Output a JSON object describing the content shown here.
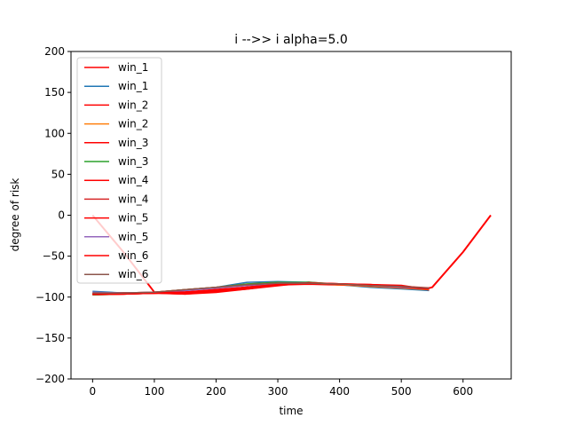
{
  "chart_data": {
    "type": "line",
    "title": "i -->> i  alpha=5.0",
    "xlabel": "time",
    "ylabel": "degree of risk",
    "xlim": [
      -35,
      678
    ],
    "ylim": [
      -200,
      200
    ],
    "xticks": [
      0,
      100,
      200,
      300,
      400,
      500,
      600
    ],
    "yticks": [
      -200,
      -150,
      -100,
      -50,
      0,
      50,
      100,
      150,
      200
    ],
    "grid": false,
    "legend_position": "top-left",
    "series": [
      {
        "name": "win_1",
        "color": "#ff0000",
        "x": [
          0,
          50,
          100,
          110,
          150,
          200,
          250,
          300,
          350,
          400,
          450,
          500,
          540,
          550,
          600,
          645
        ],
        "y": [
          0,
          -45,
          -94,
          -95,
          -96,
          -94,
          -90,
          -86,
          -82,
          -85,
          -86,
          -87,
          -90,
          -88,
          -45,
          0
        ]
      },
      {
        "name": "win_1",
        "color": "#1f77b4",
        "x": [
          0,
          50,
          100,
          150,
          200,
          250,
          300,
          350,
          400,
          450,
          500,
          545
        ],
        "y": [
          -93,
          -95,
          -95,
          -92,
          -88,
          -82,
          -81,
          -82,
          -85,
          -88,
          -90,
          -92
        ]
      },
      {
        "name": "win_2",
        "color": "#ff0000",
        "x": [
          0,
          50,
          100,
          150,
          200,
          250,
          300,
          350,
          400,
          450,
          500,
          545
        ],
        "y": [
          -97,
          -96,
          -95,
          -96,
          -93,
          -90,
          -85,
          -84,
          -85,
          -85,
          -86,
          -91
        ]
      },
      {
        "name": "win_2",
        "color": "#ff7f0e",
        "x": [
          0,
          50,
          100,
          150,
          200,
          250,
          300,
          350,
          400,
          450,
          500,
          545
        ],
        "y": [
          -96,
          -95,
          -94,
          -91,
          -88,
          -84,
          -82,
          -83,
          -85,
          -87,
          -89,
          -91
        ]
      },
      {
        "name": "win_3",
        "color": "#ff0000",
        "x": [
          0,
          50,
          100,
          150,
          200,
          250,
          300,
          350,
          400,
          450,
          500,
          545
        ],
        "y": [
          -97,
          -96,
          -95,
          -95,
          -92,
          -89,
          -84,
          -83,
          -84,
          -86,
          -88,
          -90
        ]
      },
      {
        "name": "win_3",
        "color": "#2ca02c",
        "x": [
          0,
          50,
          100,
          150,
          200,
          250,
          300,
          350,
          400,
          450,
          500,
          545
        ],
        "y": [
          -97,
          -96,
          -94,
          -91,
          -88,
          -84,
          -82,
          -82,
          -84,
          -86,
          -88,
          -90
        ]
      },
      {
        "name": "win_4",
        "color": "#ff0000",
        "x": [
          0,
          50,
          100,
          150,
          200,
          250,
          300,
          350,
          400,
          450,
          500,
          545
        ],
        "y": [
          -96,
          -96,
          -95,
          -94,
          -92,
          -88,
          -84,
          -83,
          -84,
          -86,
          -87,
          -90
        ]
      },
      {
        "name": "win_4",
        "color": "#d62728",
        "x": [
          0,
          50,
          100,
          150,
          200,
          250,
          300,
          350,
          400,
          450,
          500,
          545
        ],
        "y": [
          -95,
          -95,
          -94,
          -91,
          -88,
          -85,
          -83,
          -83,
          -84,
          -86,
          -88,
          -90
        ]
      },
      {
        "name": "win_5",
        "color": "#ff0000",
        "x": [
          0,
          50,
          100,
          150,
          200,
          250,
          300,
          350,
          400,
          450,
          500,
          545
        ],
        "y": [
          -96,
          -95,
          -95,
          -94,
          -91,
          -88,
          -84,
          -83,
          -84,
          -85,
          -87,
          -89
        ]
      },
      {
        "name": "win_5",
        "color": "#9467bd",
        "x": [
          0,
          50,
          100,
          150,
          200,
          250,
          300,
          350,
          400,
          450,
          500,
          545
        ],
        "y": [
          -94,
          -95,
          -94,
          -92,
          -89,
          -86,
          -83,
          -83,
          -84,
          -86,
          -88,
          -90
        ]
      },
      {
        "name": "win_6",
        "color": "#ff0000",
        "x": [
          0,
          50,
          100,
          150,
          200,
          250,
          300,
          350,
          400,
          450,
          500,
          545
        ],
        "y": [
          -96,
          -96,
          -95,
          -94,
          -92,
          -88,
          -85,
          -83,
          -84,
          -85,
          -87,
          -90
        ]
      },
      {
        "name": "win_6",
        "color": "#8c564b",
        "x": [
          0,
          50,
          100,
          150,
          200,
          250,
          300,
          350,
          400,
          450,
          500,
          545
        ],
        "y": [
          -95,
          -95,
          -94,
          -91,
          -88,
          -85,
          -83,
          -83,
          -84,
          -86,
          -87,
          -89
        ]
      }
    ]
  }
}
